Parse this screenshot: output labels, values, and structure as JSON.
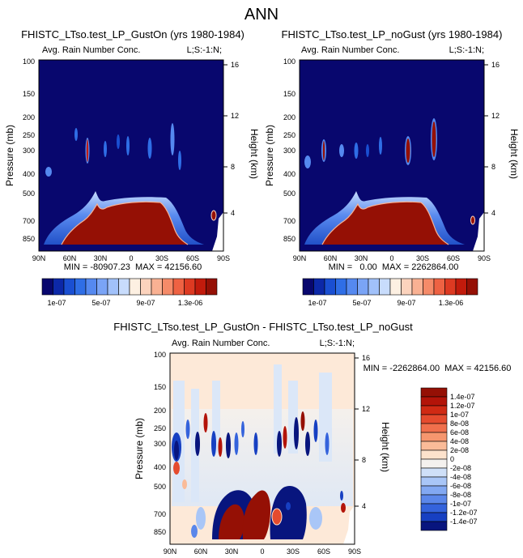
{
  "chart_data": {
    "type": "heatmap",
    "title": "ANN",
    "panels": [
      {
        "id": "gust_on",
        "title": "FHISTC_LTso.test_LP_GustOn (yrs 1980-1984)",
        "variable": "Avg. Rain Number Conc.",
        "corner_label": "L;S:-1:N;",
        "ylabel": "Pressure (mb)",
        "ylabel_right": "Height (km)",
        "pressure_ticks": [
          "100",
          "150",
          "200",
          "250",
          "300",
          "400",
          "500",
          "700",
          "850"
        ],
        "height_ticks": [
          "16",
          "12",
          "8",
          "4"
        ],
        "xticks": [
          "90N",
          "60N",
          "30N",
          "0",
          "30S",
          "60S",
          "90S"
        ],
        "min_max": "MIN = -80907.23  MAX = 42156.60"
      },
      {
        "id": "no_gust",
        "title": "FHISTC_LTso.test_LP_noGust (yrs 1980-1984)",
        "variable": "Avg. Rain Number Conc.",
        "corner_label": "L;S:-1:N;",
        "ylabel": "Pressure (mb)",
        "ylabel_right": "Height (km)",
        "pressure_ticks": [
          "100",
          "150",
          "200",
          "250",
          "300",
          "400",
          "500",
          "700",
          "850"
        ],
        "height_ticks": [
          "16",
          "12",
          "8",
          "4"
        ],
        "xticks": [
          "90N",
          "60N",
          "30N",
          "0",
          "30S",
          "60S",
          "90S"
        ],
        "min_max": "MIN =   0.00  MAX = 2262864.00"
      },
      {
        "id": "difference",
        "title": "FHISTC_LTso.test_LP_GustOn - FHISTC_LTso.test_LP_noGust",
        "variable": "Avg. Rain Number Conc.",
        "corner_label": "L;S:-1:N;",
        "ylabel": "Pressure (mb)",
        "ylabel_right": "Height (km)",
        "pressure_ticks": [
          "100",
          "150",
          "200",
          "250",
          "300",
          "400",
          "500",
          "700",
          "850"
        ],
        "height_ticks": [
          "16",
          "12",
          "8",
          "4"
        ],
        "xticks": [
          "90N",
          "60N",
          "30N",
          "0",
          "30S",
          "60S",
          "90S"
        ],
        "min_max": "MIN = -2262864.00  MAX = 42156.60"
      }
    ],
    "colorbar_sequential": {
      "labels": [
        "1e-07",
        "5e-07",
        "9e-07",
        "1.3e-06"
      ],
      "colors": [
        "#08076e",
        "#0c28a8",
        "#1a4fd2",
        "#2f6ee6",
        "#5589f0",
        "#7aa4f6",
        "#a1c1fa",
        "#c8dcfc",
        "#fdf0e2",
        "#fcd3bd",
        "#f9b193",
        "#f58b69",
        "#ee6243",
        "#dd3a22",
        "#c21b0c",
        "#951005"
      ]
    },
    "colorbar_difference": {
      "labels": [
        "1.4e-07",
        "1.2e-07",
        "1e-07",
        "8e-08",
        "6e-08",
        "4e-08",
        "2e-08",
        "0",
        "-2e-08",
        "-4e-08",
        "-6e-08",
        "-8e-08",
        "-1e-07",
        "-1.2e-07",
        "-1.4e-07"
      ],
      "colors": [
        "#951005",
        "#b31409",
        "#d02a14",
        "#e54b2e",
        "#f06f4c",
        "#f6966e",
        "#fabb98",
        "#fde2cc",
        "#f4f1ee",
        "#cfe0f8",
        "#a9c6f7",
        "#82a8f2",
        "#5b87ea",
        "#3463dc",
        "#1740c2",
        "#08157e"
      ]
    }
  }
}
